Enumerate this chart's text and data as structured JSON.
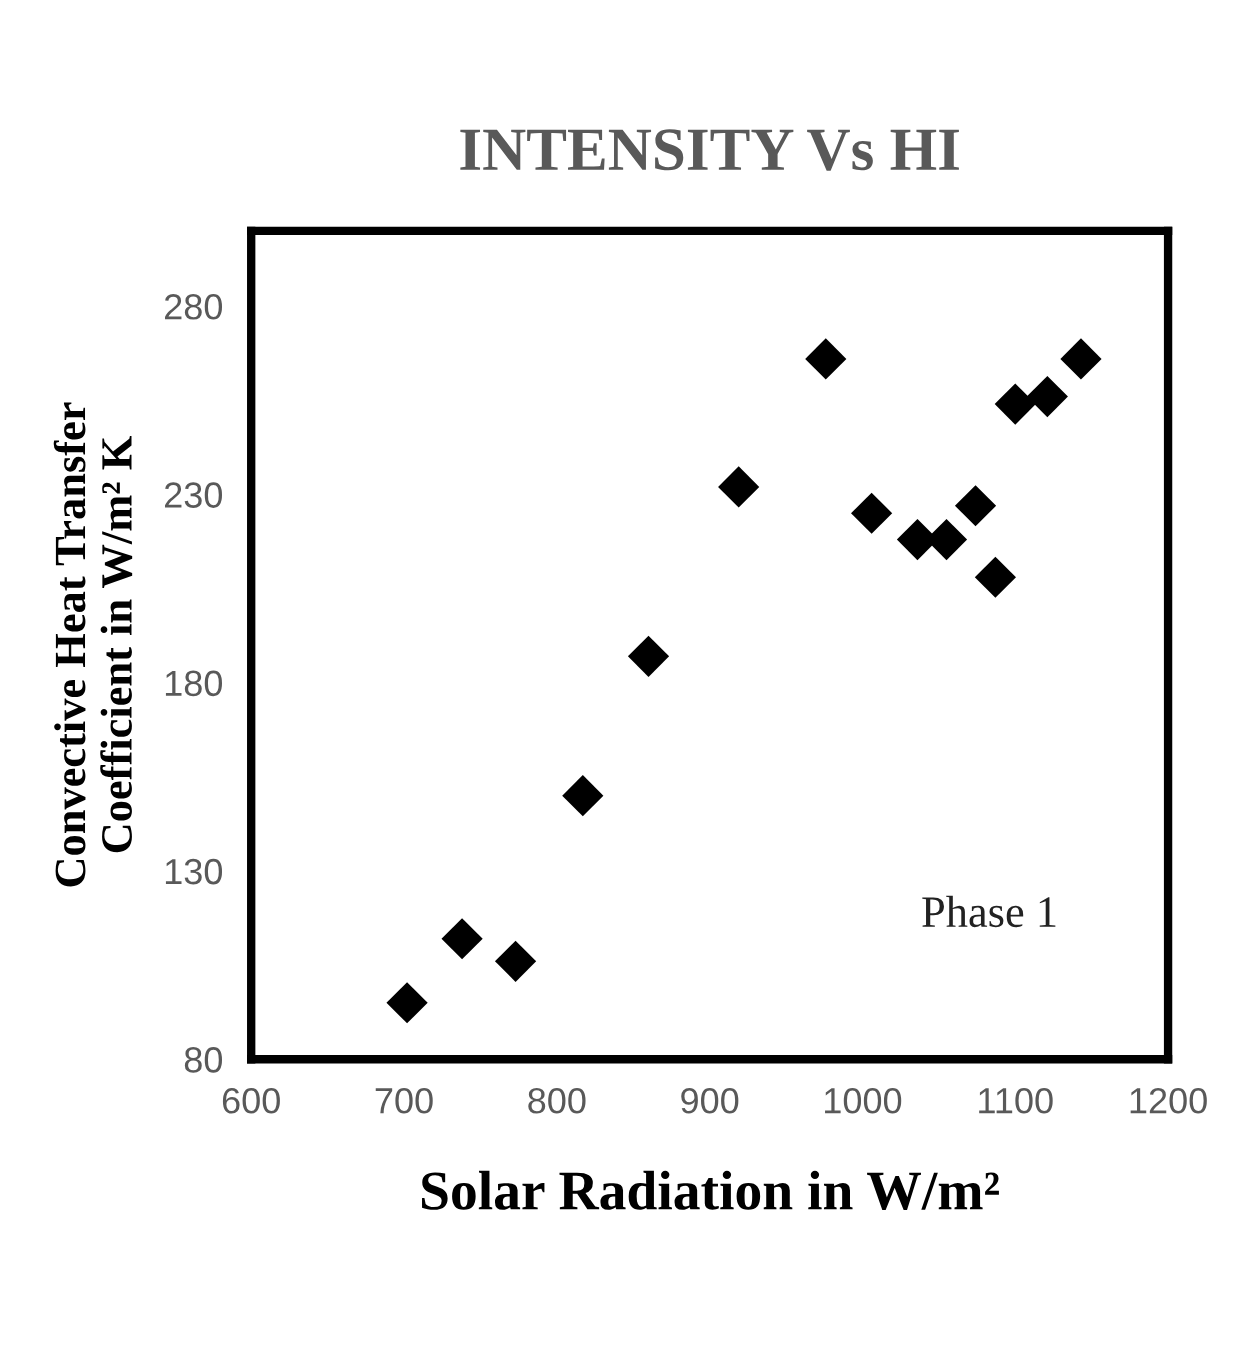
{
  "chart_data": {
    "type": "scatter",
    "title": "INTENSITY Vs HI",
    "xlabel": "Solar Radiation in W/m²",
    "ylabel": "Convective Heat Transfer\nCoefficient in W/m² K",
    "series": [
      {
        "color": "#000000",
        "x": [
          702,
          738,
          773,
          817,
          860,
          919,
          976,
          1006,
          1036,
          1055,
          1074,
          1087,
          1100,
          1121,
          1143
        ],
        "values": [
          95,
          112,
          106,
          150,
          187,
          232,
          266,
          225,
          218,
          218,
          227,
          208,
          254,
          256,
          266
        ]
      }
    ],
    "xlim": [
      600,
      1200
    ],
    "xticks": [
      600,
      700,
      800,
      900,
      1000,
      1100,
      1200
    ],
    "ylim": [
      80,
      300
    ],
    "yticks": [
      80,
      130,
      180,
      230,
      280
    ],
    "marker": "diamond",
    "grid": false,
    "legend": false,
    "annotations": [
      "Phase 1"
    ]
  }
}
